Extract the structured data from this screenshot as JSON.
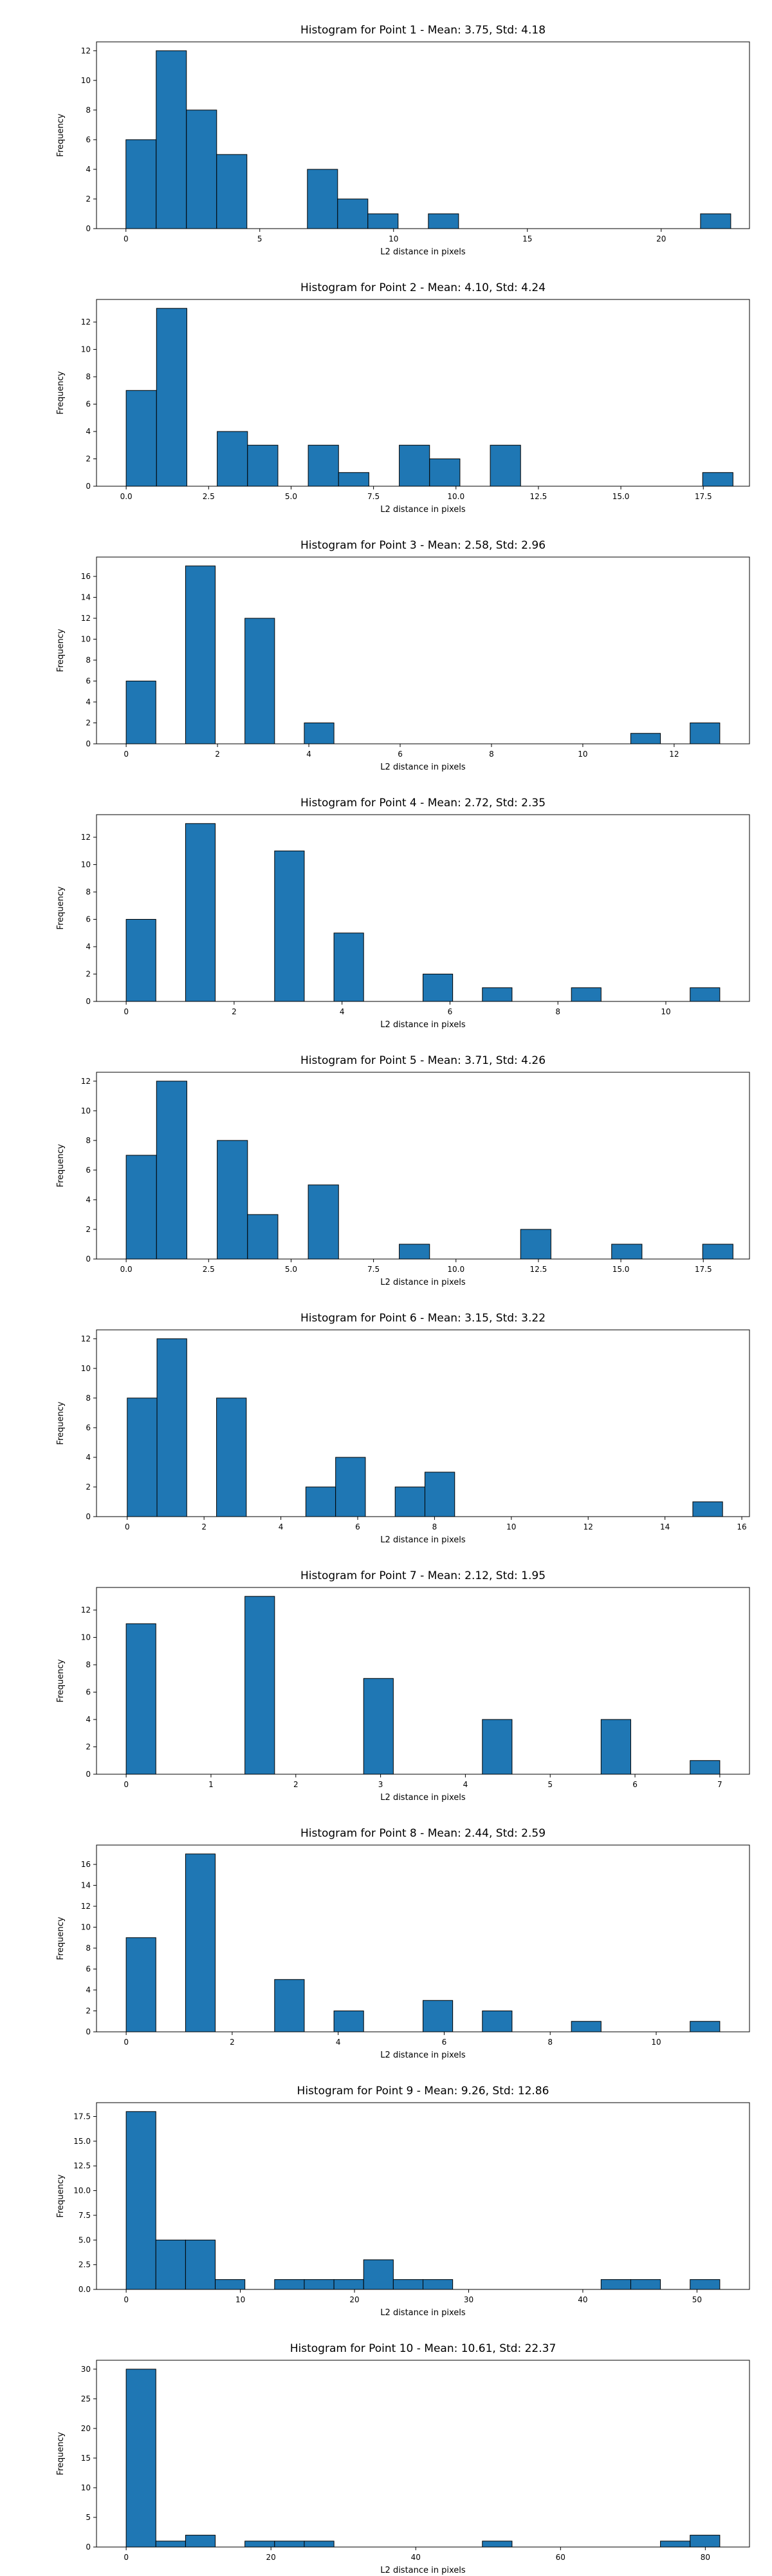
{
  "chart_data": [
    {
      "type": "histogram",
      "title": "Histogram for Point 1 - Mean: 3.75, Std: 4.18",
      "xlabel": "L2 distance in pixels",
      "ylabel": "Frequency",
      "bar_color": "#1f77b4",
      "xlim": [
        -1.1,
        23.3
      ],
      "ylim": [
        0,
        12.6
      ],
      "xticks": [
        0,
        5,
        10,
        15,
        20
      ],
      "xtick_labels": [
        "0",
        "5",
        "10",
        "15",
        "20"
      ],
      "yticks": [
        0,
        2,
        4,
        6,
        8,
        10,
        12
      ],
      "ytick_labels": [
        "0",
        "2",
        "4",
        "6",
        "8",
        "10",
        "12"
      ],
      "bins": [
        {
          "x0": 0.0,
          "x1": 1.13,
          "count": 6
        },
        {
          "x0": 1.13,
          "x1": 2.26,
          "count": 12
        },
        {
          "x0": 2.26,
          "x1": 3.39,
          "count": 8
        },
        {
          "x0": 3.39,
          "x1": 4.52,
          "count": 5
        },
        {
          "x0": 6.78,
          "x1": 7.91,
          "count": 4
        },
        {
          "x0": 7.91,
          "x1": 9.04,
          "count": 2
        },
        {
          "x0": 9.04,
          "x1": 10.17,
          "count": 1
        },
        {
          "x0": 11.3,
          "x1": 12.43,
          "count": 1
        },
        {
          "x0": 21.47,
          "x1": 22.6,
          "count": 1
        }
      ]
    },
    {
      "type": "histogram",
      "title": "Histogram for Point 2 - Mean: 4.10, Std: 4.24",
      "xlabel": "L2 distance in pixels",
      "ylabel": "Frequency",
      "bar_color": "#1f77b4",
      "xlim": [
        -0.9,
        18.9
      ],
      "ylim": [
        0,
        13.65
      ],
      "xticks": [
        0,
        2.5,
        5,
        7.5,
        10,
        12.5,
        15,
        17.5
      ],
      "xtick_labels": [
        "0.0",
        "2.5",
        "5.0",
        "7.5",
        "10.0",
        "12.5",
        "15.0",
        "17.5"
      ],
      "yticks": [
        0,
        2,
        4,
        6,
        8,
        10,
        12
      ],
      "ytick_labels": [
        "0",
        "2",
        "4",
        "6",
        "8",
        "10",
        "12"
      ],
      "bins": [
        {
          "x0": 0.0,
          "x1": 0.92,
          "count": 7
        },
        {
          "x0": 0.92,
          "x1": 1.84,
          "count": 13
        },
        {
          "x0": 2.76,
          "x1": 3.68,
          "count": 4
        },
        {
          "x0": 3.68,
          "x1": 4.6,
          "count": 3
        },
        {
          "x0": 5.52,
          "x1": 6.44,
          "count": 3
        },
        {
          "x0": 6.44,
          "x1": 7.36,
          "count": 1
        },
        {
          "x0": 8.28,
          "x1": 9.2,
          "count": 3
        },
        {
          "x0": 9.2,
          "x1": 10.12,
          "count": 2
        },
        {
          "x0": 11.04,
          "x1": 11.96,
          "count": 3
        },
        {
          "x0": 17.48,
          "x1": 18.4,
          "count": 1
        }
      ]
    },
    {
      "type": "histogram",
      "title": "Histogram for Point 3 - Mean: 2.58, Std: 2.96",
      "xlabel": "L2 distance in pixels",
      "ylabel": "Frequency",
      "bar_color": "#1f77b4",
      "xlim": [
        -0.65,
        13.65
      ],
      "ylim": [
        0,
        17.85
      ],
      "xticks": [
        0,
        2,
        4,
        6,
        8,
        10,
        12
      ],
      "xtick_labels": [
        "0",
        "2",
        "4",
        "6",
        "8",
        "10",
        "12"
      ],
      "yticks": [
        0,
        2,
        4,
        6,
        8,
        10,
        12,
        14,
        16
      ],
      "ytick_labels": [
        "0",
        "2",
        "4",
        "6",
        "8",
        "10",
        "12",
        "14",
        "16"
      ],
      "bins": [
        {
          "x0": 0.0,
          "x1": 0.65,
          "count": 6
        },
        {
          "x0": 1.3,
          "x1": 1.95,
          "count": 17
        },
        {
          "x0": 2.6,
          "x1": 3.25,
          "count": 12
        },
        {
          "x0": 3.9,
          "x1": 4.55,
          "count": 2
        },
        {
          "x0": 11.05,
          "x1": 11.7,
          "count": 1
        },
        {
          "x0": 12.35,
          "x1": 13.0,
          "count": 2
        }
      ]
    },
    {
      "type": "histogram",
      "title": "Histogram for Point 4 - Mean: 2.72, Std: 2.35",
      "xlabel": "L2 distance in pixels",
      "ylabel": "Frequency",
      "bar_color": "#1f77b4",
      "xlim": [
        -0.55,
        11.55
      ],
      "ylim": [
        0,
        13.65
      ],
      "xticks": [
        0,
        2,
        4,
        6,
        8,
        10
      ],
      "xtick_labels": [
        "0",
        "2",
        "4",
        "6",
        "8",
        "10"
      ],
      "yticks": [
        0,
        2,
        4,
        6,
        8,
        10,
        12
      ],
      "ytick_labels": [
        "0",
        "2",
        "4",
        "6",
        "8",
        "10",
        "12"
      ],
      "bins": [
        {
          "x0": 0.0,
          "x1": 0.55,
          "count": 6
        },
        {
          "x0": 1.1,
          "x1": 1.65,
          "count": 13
        },
        {
          "x0": 2.75,
          "x1": 3.3,
          "count": 11
        },
        {
          "x0": 3.85,
          "x1": 4.4,
          "count": 5
        },
        {
          "x0": 5.5,
          "x1": 6.05,
          "count": 2
        },
        {
          "x0": 6.6,
          "x1": 7.15,
          "count": 1
        },
        {
          "x0": 8.25,
          "x1": 8.8,
          "count": 1
        },
        {
          "x0": 10.45,
          "x1": 11.0,
          "count": 1
        }
      ]
    },
    {
      "type": "histogram",
      "title": "Histogram for Point 5 - Mean: 3.71, Std: 4.26",
      "xlabel": "L2 distance in pixels",
      "ylabel": "Frequency",
      "bar_color": "#1f77b4",
      "xlim": [
        -0.9,
        18.9
      ],
      "ylim": [
        0,
        12.6
      ],
      "xticks": [
        0,
        2.5,
        5,
        7.5,
        10,
        12.5,
        15,
        17.5
      ],
      "xtick_labels": [
        "0.0",
        "2.5",
        "5.0",
        "7.5",
        "10.0",
        "12.5",
        "15.0",
        "17.5"
      ],
      "yticks": [
        0,
        2,
        4,
        6,
        8,
        10,
        12
      ],
      "ytick_labels": [
        "0",
        "2",
        "4",
        "6",
        "8",
        "10",
        "12"
      ],
      "bins": [
        {
          "x0": 0.0,
          "x1": 0.92,
          "count": 7
        },
        {
          "x0": 0.92,
          "x1": 1.84,
          "count": 12
        },
        {
          "x0": 2.76,
          "x1": 3.68,
          "count": 8
        },
        {
          "x0": 3.68,
          "x1": 4.6,
          "count": 3
        },
        {
          "x0": 5.52,
          "x1": 6.44,
          "count": 5
        },
        {
          "x0": 8.28,
          "x1": 9.2,
          "count": 1
        },
        {
          "x0": 11.96,
          "x1": 12.88,
          "count": 2
        },
        {
          "x0": 14.72,
          "x1": 15.64,
          "count": 1
        },
        {
          "x0": 17.48,
          "x1": 18.4,
          "count": 1
        }
      ]
    },
    {
      "type": "histogram",
      "title": "Histogram for Point 6 - Mean: 3.15, Std: 3.22",
      "xlabel": "L2 distance in pixels",
      "ylabel": "Frequency",
      "bar_color": "#1f77b4",
      "xlim": [
        -0.8,
        16.2
      ],
      "ylim": [
        0,
        12.6
      ],
      "xticks": [
        0,
        2,
        4,
        6,
        8,
        10,
        12,
        14,
        16
      ],
      "xtick_labels": [
        "0",
        "2",
        "4",
        "6",
        "8",
        "10",
        "12",
        "14",
        "16"
      ],
      "yticks": [
        0,
        2,
        4,
        6,
        8,
        10,
        12
      ],
      "ytick_labels": [
        "0",
        "2",
        "4",
        "6",
        "8",
        "10",
        "12"
      ],
      "bins": [
        {
          "x0": 0.0,
          "x1": 0.775,
          "count": 8
        },
        {
          "x0": 0.775,
          "x1": 1.55,
          "count": 12
        },
        {
          "x0": 2.325,
          "x1": 3.1,
          "count": 8
        },
        {
          "x0": 4.65,
          "x1": 5.425,
          "count": 2
        },
        {
          "x0": 5.425,
          "x1": 6.2,
          "count": 4
        },
        {
          "x0": 6.975,
          "x1": 7.75,
          "count": 2
        },
        {
          "x0": 7.75,
          "x1": 8.525,
          "count": 3
        },
        {
          "x0": 14.725,
          "x1": 15.5,
          "count": 1
        }
      ]
    },
    {
      "type": "histogram",
      "title": "Histogram for Point 7 - Mean: 2.12, Std: 1.95",
      "xlabel": "L2 distance in pixels",
      "ylabel": "Frequency",
      "bar_color": "#1f77b4",
      "xlim": [
        -0.35,
        7.35
      ],
      "ylim": [
        0,
        13.65
      ],
      "xticks": [
        0,
        1,
        2,
        3,
        4,
        5,
        6,
        7
      ],
      "xtick_labels": [
        "0",
        "1",
        "2",
        "3",
        "4",
        "5",
        "6",
        "7"
      ],
      "yticks": [
        0,
        2,
        4,
        6,
        8,
        10,
        12
      ],
      "ytick_labels": [
        "0",
        "2",
        "4",
        "6",
        "8",
        "10",
        "12"
      ],
      "bins": [
        {
          "x0": 0.0,
          "x1": 0.35,
          "count": 11
        },
        {
          "x0": 1.4,
          "x1": 1.75,
          "count": 13
        },
        {
          "x0": 2.8,
          "x1": 3.15,
          "count": 7
        },
        {
          "x0": 4.2,
          "x1": 4.55,
          "count": 4
        },
        {
          "x0": 5.6,
          "x1": 5.95,
          "count": 4
        },
        {
          "x0": 6.65,
          "x1": 7.0,
          "count": 1
        }
      ]
    },
    {
      "type": "histogram",
      "title": "Histogram for Point 8 - Mean: 2.44, Std: 2.59",
      "xlabel": "L2 distance in pixels",
      "ylabel": "Frequency",
      "bar_color": "#1f77b4",
      "xlim": [
        -0.56,
        11.76
      ],
      "ylim": [
        0,
        17.85
      ],
      "xticks": [
        0,
        2,
        4,
        6,
        8,
        10
      ],
      "xtick_labels": [
        "0",
        "2",
        "4",
        "6",
        "8",
        "10"
      ],
      "yticks": [
        0,
        2,
        4,
        6,
        8,
        10,
        12,
        14,
        16
      ],
      "ytick_labels": [
        "0",
        "2",
        "4",
        "6",
        "8",
        "10",
        "12",
        "14",
        "16"
      ],
      "bins": [
        {
          "x0": 0.0,
          "x1": 0.56,
          "count": 9
        },
        {
          "x0": 1.12,
          "x1": 1.68,
          "count": 17
        },
        {
          "x0": 2.8,
          "x1": 3.36,
          "count": 5
        },
        {
          "x0": 3.92,
          "x1": 4.48,
          "count": 2
        },
        {
          "x0": 5.6,
          "x1": 6.16,
          "count": 3
        },
        {
          "x0": 6.72,
          "x1": 7.28,
          "count": 2
        },
        {
          "x0": 8.4,
          "x1": 8.96,
          "count": 1
        },
        {
          "x0": 10.64,
          "x1": 11.2,
          "count": 1
        }
      ]
    },
    {
      "type": "histogram",
      "title": "Histogram for Point 9 - Mean: 9.26, Std: 12.86",
      "xlabel": "L2 distance in pixels",
      "ylabel": "Frequency",
      "bar_color": "#1f77b4",
      "xlim": [
        -2.6,
        54.6
      ],
      "ylim": [
        0,
        18.9
      ],
      "xticks": [
        0,
        10,
        20,
        30,
        40,
        50
      ],
      "xtick_labels": [
        "0",
        "10",
        "20",
        "30",
        "40",
        "50"
      ],
      "yticks": [
        0,
        2.5,
        5,
        7.5,
        10,
        12.5,
        15,
        17.5
      ],
      "ytick_labels": [
        "0.0",
        "2.5",
        "5.0",
        "7.5",
        "10.0",
        "12.5",
        "15.0",
        "17.5"
      ],
      "bins": [
        {
          "x0": 0.0,
          "x1": 2.6,
          "count": 18
        },
        {
          "x0": 2.6,
          "x1": 5.2,
          "count": 5
        },
        {
          "x0": 5.2,
          "x1": 7.8,
          "count": 5
        },
        {
          "x0": 7.8,
          "x1": 10.4,
          "count": 1
        },
        {
          "x0": 13.0,
          "x1": 15.6,
          "count": 1
        },
        {
          "x0": 15.6,
          "x1": 18.2,
          "count": 1
        },
        {
          "x0": 18.2,
          "x1": 20.8,
          "count": 1
        },
        {
          "x0": 20.8,
          "x1": 23.4,
          "count": 3
        },
        {
          "x0": 23.4,
          "x1": 26.0,
          "count": 1
        },
        {
          "x0": 26.0,
          "x1": 28.6,
          "count": 1
        },
        {
          "x0": 41.6,
          "x1": 44.2,
          "count": 1
        },
        {
          "x0": 44.2,
          "x1": 46.8,
          "count": 1
        },
        {
          "x0": 49.4,
          "x1": 52.0,
          "count": 1
        }
      ]
    },
    {
      "type": "histogram",
      "title": "Histogram for Point 10 - Mean: 10.61, Std: 22.37",
      "xlabel": "L2 distance in pixels",
      "ylabel": "Frequency",
      "bar_color": "#1f77b4",
      "xlim": [
        -4.1,
        86.1
      ],
      "ylim": [
        0,
        31.5
      ],
      "xticks": [
        0,
        20,
        40,
        60,
        80
      ],
      "xtick_labels": [
        "0",
        "20",
        "40",
        "60",
        "80"
      ],
      "yticks": [
        0,
        5,
        10,
        15,
        20,
        25,
        30
      ],
      "ytick_labels": [
        "0",
        "5",
        "10",
        "15",
        "20",
        "25",
        "30"
      ],
      "bins": [
        {
          "x0": 0.0,
          "x1": 4.1,
          "count": 30
        },
        {
          "x0": 4.1,
          "x1": 8.2,
          "count": 1
        },
        {
          "x0": 8.2,
          "x1": 12.3,
          "count": 2
        },
        {
          "x0": 16.4,
          "x1": 20.5,
          "count": 1
        },
        {
          "x0": 20.5,
          "x1": 24.6,
          "count": 1
        },
        {
          "x0": 24.6,
          "x1": 28.7,
          "count": 1
        },
        {
          "x0": 49.2,
          "x1": 53.3,
          "count": 1
        },
        {
          "x0": 73.8,
          "x1": 77.9,
          "count": 1
        },
        {
          "x0": 77.9,
          "x1": 82.0,
          "count": 2
        }
      ]
    }
  ]
}
